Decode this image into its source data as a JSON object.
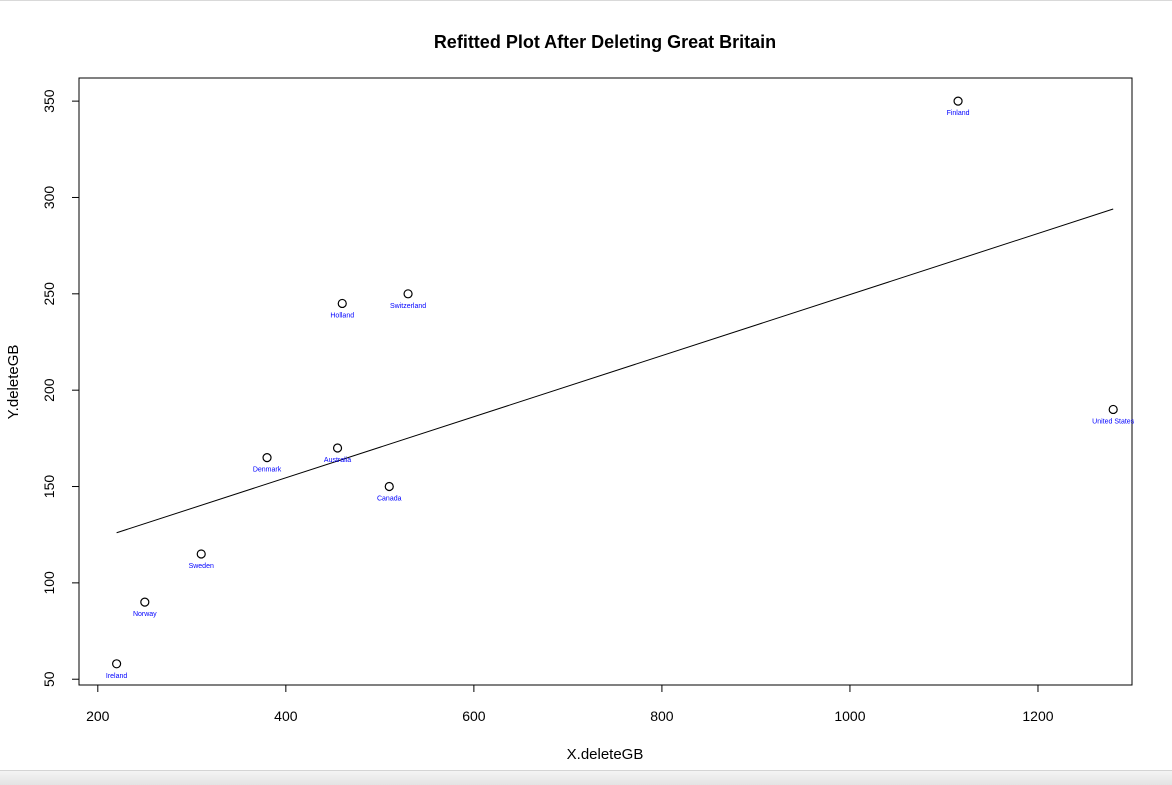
{
  "chart_data": {
    "type": "scatter",
    "title": "Refitted Plot After Deleting Great Britain",
    "xlabel": "X.deleteGB",
    "ylabel": "Y.deleteGB",
    "xlim": [
      180,
      1300
    ],
    "ylim": [
      47,
      362
    ],
    "x_ticks": [
      200,
      400,
      600,
      800,
      1000,
      1200
    ],
    "y_ticks": [
      50,
      100,
      150,
      200,
      250,
      300,
      350
    ],
    "grid": false,
    "label_color": "#0000ff",
    "points": [
      {
        "label": "Ireland",
        "x": 220,
        "y": 58
      },
      {
        "label": "Norway",
        "x": 250,
        "y": 90
      },
      {
        "label": "Sweden",
        "x": 310,
        "y": 115
      },
      {
        "label": "Denmark",
        "x": 380,
        "y": 165
      },
      {
        "label": "Australia",
        "x": 455,
        "y": 170
      },
      {
        "label": "Holland",
        "x": 460,
        "y": 245
      },
      {
        "label": "Canada",
        "x": 510,
        "y": 150
      },
      {
        "label": "Switzerland",
        "x": 530,
        "y": 250
      },
      {
        "label": "Finland",
        "x": 1115,
        "y": 350
      },
      {
        "label": "United States",
        "x": 1280,
        "y": 190
      }
    ],
    "fit_line": {
      "x": [
        220,
        1280
      ],
      "y": [
        126,
        294
      ]
    }
  }
}
